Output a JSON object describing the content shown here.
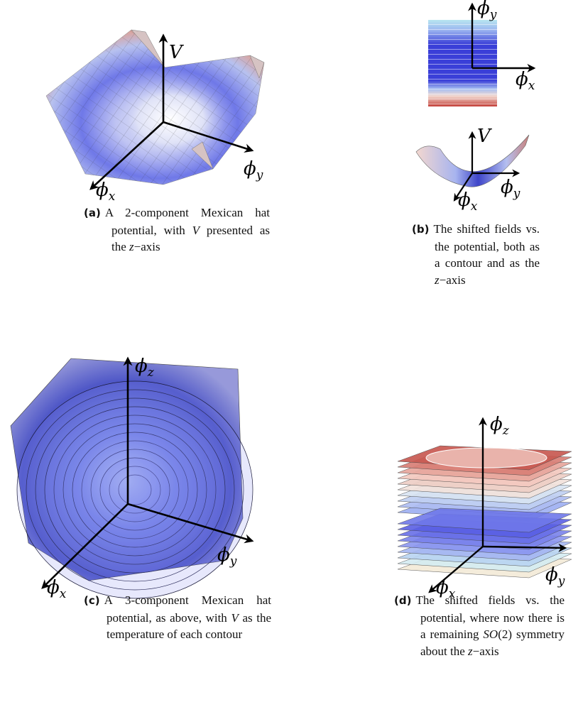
{
  "figures": [
    {
      "label": "(a)",
      "caption": [
        {
          "text": "A 2-component Mexican hat potential, with ",
          "italic": false
        },
        {
          "text": "V",
          "italic": true
        },
        {
          "text": " presented as the ",
          "italic": false
        },
        {
          "text": "z",
          "italic": true
        },
        {
          "text": "−axis",
          "italic": false
        }
      ],
      "axes": [
        {
          "symbol": "V",
          "subscript": ""
        },
        {
          "symbol": "ϕ",
          "subscript": "y"
        },
        {
          "symbol": "ϕ",
          "subscript": "x"
        }
      ]
    },
    {
      "label": "(b)",
      "caption": [
        {
          "text": "The shifted fields vs. the potential, both as a contour and as the ",
          "italic": false
        },
        {
          "text": "z",
          "italic": true
        },
        {
          "text": "−axis",
          "italic": false
        }
      ],
      "axes": [
        {
          "symbol": "ϕ",
          "subscript": "y"
        },
        {
          "symbol": "ϕ",
          "subscript": "x"
        },
        {
          "symbol": "V",
          "subscript": ""
        },
        {
          "symbol": "ϕ",
          "subscript": "y"
        },
        {
          "symbol": "ϕ",
          "subscript": "x"
        }
      ]
    },
    {
      "label": "(c)",
      "caption": [
        {
          "text": "A 3-component Mexican hat potential, as above, with ",
          "italic": false
        },
        {
          "text": "V",
          "italic": true
        },
        {
          "text": " as the temperature of each contour",
          "italic": false
        }
      ],
      "axes": [
        {
          "symbol": "ϕ",
          "subscript": "z"
        },
        {
          "symbol": "ϕ",
          "subscript": "y"
        },
        {
          "symbol": "ϕ",
          "subscript": "x"
        }
      ]
    },
    {
      "label": "(d)",
      "caption": [
        {
          "text": "The shifted fields vs. the potential, where now there is a remaining ",
          "italic": false
        },
        {
          "text": "SO",
          "italic": true
        },
        {
          "text": "(2) symmetry about the ",
          "italic": false
        },
        {
          "text": "z",
          "italic": true
        },
        {
          "text": "−axis",
          "italic": false
        }
      ],
      "axes": [
        {
          "symbol": "ϕ",
          "subscript": "z"
        },
        {
          "symbol": "ϕ",
          "subscript": "y"
        },
        {
          "symbol": "ϕ",
          "subscript": "x"
        }
      ]
    }
  ]
}
